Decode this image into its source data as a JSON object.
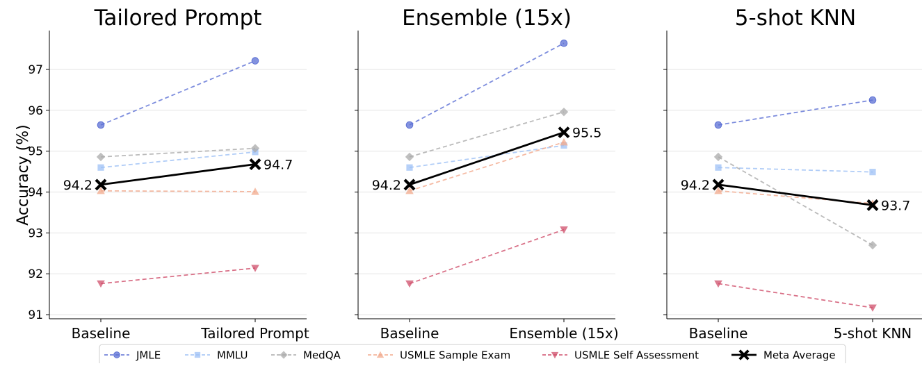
{
  "chart_data": {
    "type": "line",
    "ylabel": "Accuracy (%)",
    "ylim": [
      90.9,
      97.95
    ],
    "yticks": [
      91,
      92,
      93,
      94,
      95,
      96,
      97
    ],
    "grid": "horizontal",
    "legend_position": "bottom",
    "series_styles": [
      {
        "name": "JMLE",
        "color": "#5b6fd4",
        "marker": "circle",
        "dashed": true
      },
      {
        "name": "MMLU",
        "color": "#9ec0f5",
        "marker": "square",
        "dashed": true
      },
      {
        "name": "MedQA",
        "color": "#a9a9a9",
        "marker": "diamond",
        "dashed": true
      },
      {
        "name": "USMLE Sample Exam",
        "color": "#f2a98c",
        "marker": "triangle-up",
        "dashed": true
      },
      {
        "name": "USMLE Self Assessment",
        "color": "#cf4d6a",
        "marker": "triangle-down",
        "dashed": true
      },
      {
        "name": "Meta Average",
        "color": "#000000",
        "marker": "x",
        "dashed": false
      }
    ],
    "panels": [
      {
        "title": "Tailored Prompt",
        "categories": [
          "Baseline",
          "Tailored Prompt"
        ],
        "series": [
          {
            "name": "JMLE",
            "values": [
              95.64,
              97.21
            ]
          },
          {
            "name": "MMLU",
            "values": [
              94.6,
              94.98
            ]
          },
          {
            "name": "MedQA",
            "values": [
              94.86,
              95.07
            ]
          },
          {
            "name": "USMLE Sample Exam",
            "values": [
              94.03,
              94.01
            ]
          },
          {
            "name": "USMLE Self Assessment",
            "values": [
              91.76,
              92.14
            ]
          },
          {
            "name": "Meta Average",
            "values": [
              94.18,
              94.68
            ]
          }
        ],
        "meta_labels": [
          "94.2",
          "94.7"
        ]
      },
      {
        "title": "Ensemble (15x)",
        "categories": [
          "Baseline",
          "Ensemble (15x)"
        ],
        "series": [
          {
            "name": "JMLE",
            "values": [
              95.64,
              97.64
            ]
          },
          {
            "name": "MMLU",
            "values": [
              94.6,
              95.14
            ]
          },
          {
            "name": "MedQA",
            "values": [
              94.86,
              95.96
            ]
          },
          {
            "name": "USMLE Sample Exam",
            "values": [
              94.03,
              95.22
            ]
          },
          {
            "name": "USMLE Self Assessment",
            "values": [
              91.76,
              93.08
            ]
          },
          {
            "name": "Meta Average",
            "values": [
              94.18,
              95.46
            ]
          }
        ],
        "meta_labels": [
          "94.2",
          "95.5"
        ]
      },
      {
        "title": "5-shot KNN",
        "categories": [
          "Baseline",
          "5-shot KNN"
        ],
        "series": [
          {
            "name": "JMLE",
            "values": [
              95.64,
              96.25
            ]
          },
          {
            "name": "MMLU",
            "values": [
              94.6,
              94.49
            ]
          },
          {
            "name": "MedQA",
            "values": [
              94.86,
              92.7
            ]
          },
          {
            "name": "USMLE Sample Exam",
            "values": [
              94.03,
              93.72
            ]
          },
          {
            "name": "USMLE Self Assessment",
            "values": [
              91.76,
              91.17
            ]
          },
          {
            "name": "Meta Average",
            "values": [
              94.18,
              93.68
            ]
          }
        ],
        "meta_labels": [
          "94.2",
          "93.7"
        ]
      }
    ]
  }
}
